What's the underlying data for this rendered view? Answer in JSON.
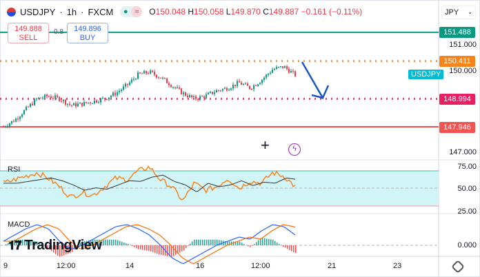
{
  "header": {
    "symbol": "USDJPY",
    "interval": "1h",
    "exchange": "FXCM",
    "open": "150.048",
    "high": "150.058",
    "low": "149.870",
    "close": "149.887",
    "change": "−0.161 (−0.11%)",
    "labels": {
      "o": "O",
      "h": "H",
      "l": "L",
      "c": "C"
    }
  },
  "trade": {
    "sell_price": "149.888",
    "sell_label": "SELL",
    "spread": "0.8",
    "buy_price": "149.896",
    "buy_label": "BUY"
  },
  "currency": "JPY",
  "price_axis": [
    "151.000",
    "150.000",
    "147.000"
  ],
  "levels": [
    {
      "price": "151.488",
      "color": "#089981",
      "style": "solid"
    },
    {
      "price": "150.411",
      "color": "#f7841c",
      "style": "dotted"
    },
    {
      "price": "148.994",
      "color": "#e91e63",
      "style": "dotted"
    },
    {
      "price": "147.946",
      "color": "#f05350",
      "style": "solid"
    }
  ],
  "symbol_tag": "USDJPY",
  "rsi": {
    "label": "RSI",
    "axis": [
      "75.00",
      "50.00",
      "25.00"
    ]
  },
  "macd": {
    "label": "MACD",
    "axis": [
      "0.000"
    ]
  },
  "time_axis": [
    "9",
    "12:00",
    "14",
    "16",
    "12:00",
    "21",
    "23"
  ],
  "watermark": "TradingView",
  "colors": {
    "up": "#089981",
    "down": "#f23645",
    "rsi": "#f7841c",
    "band": "#d1f4f7",
    "arrow": "#1b56c4"
  },
  "chart_data": {
    "type": "candlestick",
    "price_path": [
      147.95,
      148.2,
      148.6,
      149.0,
      149.1,
      149.0,
      148.75,
      148.8,
      148.9,
      149.0,
      149.2,
      149.5,
      149.9,
      150.0,
      149.8,
      149.5,
      149.2,
      149.0,
      149.1,
      149.3,
      149.4,
      149.6,
      149.4,
      149.7,
      150.1,
      150.2,
      149.89
    ],
    "rsi_path": [
      55,
      60,
      65,
      70,
      62,
      50,
      35,
      42,
      38,
      50,
      62,
      60,
      72,
      78,
      60,
      50,
      30,
      55,
      45,
      50,
      62,
      48,
      58,
      55,
      70,
      65,
      50
    ],
    "macd_path": [
      0.02,
      0.05,
      0.08,
      0.1,
      0.08,
      0.02,
      -0.02,
      0.0,
      0.03,
      0.06,
      0.09,
      0.1,
      0.08,
      0.05,
      0.0,
      -0.06,
      -0.09,
      -0.06,
      -0.03,
      0.0,
      0.02,
      0.04,
      0.03,
      0.07,
      0.1,
      0.09,
      0.05
    ]
  }
}
